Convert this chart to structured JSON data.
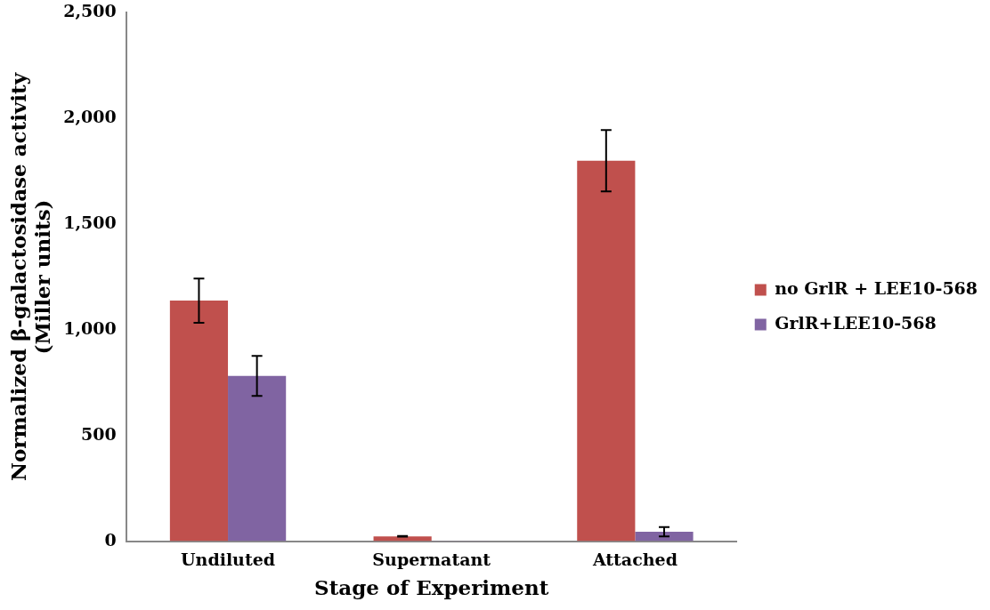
{
  "chart_data": {
    "type": "bar",
    "xlabel": "Stage of Experiment",
    "ylabel": "Normalized β-galactosidase activity (Miller units)",
    "categories": [
      "Undiluted",
      "Supernatant",
      "Attached"
    ],
    "series": [
      {
        "name": "no GrlR + LEE10-568",
        "color": "#c0504d",
        "values": [
          1138,
          23,
          1800
        ],
        "errors": [
          105,
          2,
          145
        ]
      },
      {
        "name": "GrlR+LEE10-568",
        "color": "#8064a2",
        "values": [
          782,
          2,
          45
        ],
        "errors": [
          95,
          null,
          22
        ]
      }
    ],
    "ylim": [
      0,
      2500
    ],
    "yticks": [
      {
        "value": 0,
        "label": "0"
      },
      {
        "value": 500,
        "label": "500"
      },
      {
        "value": 1000,
        "label": "1,000"
      },
      {
        "value": 1500,
        "label": "1,500"
      },
      {
        "value": 2000,
        "label": "2,000"
      },
      {
        "value": 2500,
        "label": "2,500"
      }
    ],
    "grid": false,
    "legend": "right"
  }
}
